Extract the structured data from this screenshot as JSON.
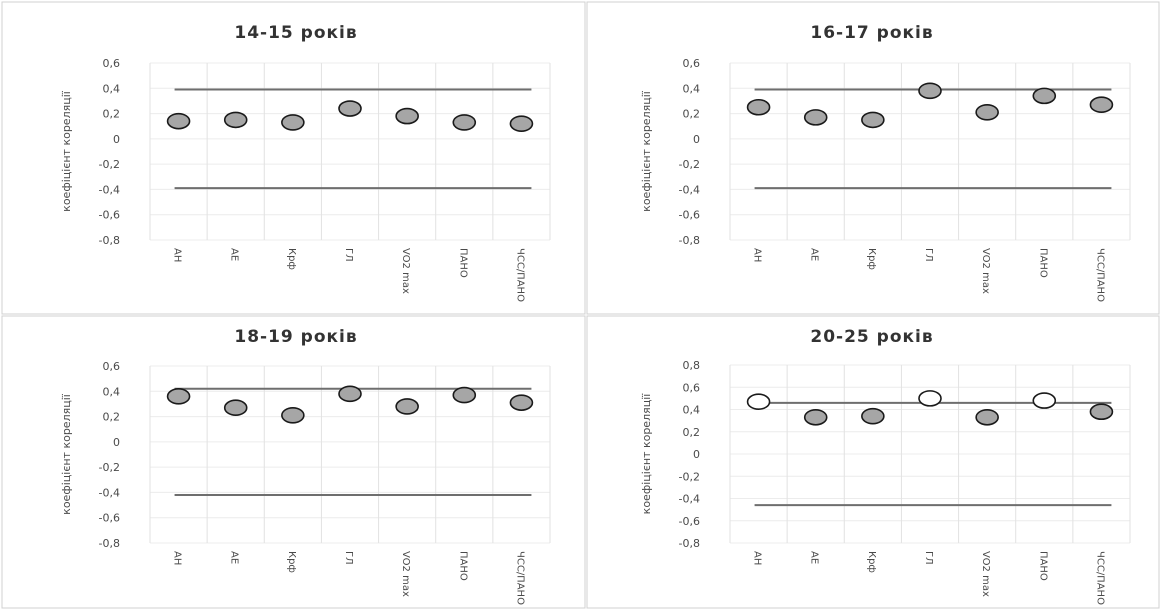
{
  "chart_data": [
    {
      "type": "scatter",
      "title": "14-15 років",
      "ylabel": "коефіцієнт кореляції",
      "categories": [
        "АН",
        "АЕ",
        "Крф",
        "ГЛ",
        "VO2 max",
        "ПАНО",
        "ЧСС/ПАНО"
      ],
      "values": [
        0.14,
        0.15,
        0.13,
        0.24,
        0.18,
        0.13,
        0.12
      ],
      "significant": [
        false,
        false,
        false,
        false,
        false,
        false,
        false
      ],
      "threshold": 0.39,
      "ylim": [
        -0.8,
        0.6
      ],
      "yticks": [
        "0,6",
        "0,4",
        "0,2",
        "0",
        "-0,2",
        "-0,4",
        "-0,6",
        "-0,8"
      ],
      "grid": true
    },
    {
      "type": "scatter",
      "title": "16-17 років",
      "ylabel": "коефіцієнт кореляції",
      "categories": [
        "АН",
        "АЕ",
        "Крф",
        "ГЛ",
        "VO2 max",
        "ПАНО",
        "ЧСС/ПАНО"
      ],
      "values": [
        0.25,
        0.17,
        0.15,
        0.38,
        0.21,
        0.34,
        0.27
      ],
      "significant": [
        false,
        false,
        false,
        false,
        false,
        false,
        false
      ],
      "threshold": 0.39,
      "ylim": [
        -0.8,
        0.6
      ],
      "yticks": [
        "0,6",
        "0,4",
        "0,2",
        "0",
        "-0,2",
        "-0,4",
        "-0,6",
        "-0,8"
      ],
      "grid": true
    },
    {
      "type": "scatter",
      "title": "18-19 років",
      "ylabel": "коефіцієнт кореляції",
      "categories": [
        "АН",
        "АЕ",
        "Крф",
        "ГЛ",
        "VO2 max",
        "ПАНО",
        "ЧСС/ПАНО"
      ],
      "values": [
        0.36,
        0.27,
        0.21,
        0.38,
        0.28,
        0.37,
        0.31
      ],
      "significant": [
        false,
        false,
        false,
        false,
        false,
        false,
        false
      ],
      "threshold": 0.42,
      "ylim": [
        -0.8,
        0.6
      ],
      "yticks": [
        "0,6",
        "0,4",
        "0,2",
        "0",
        "-0,2",
        "-0,4",
        "-0,6",
        "-0,8"
      ],
      "grid": true
    },
    {
      "type": "scatter",
      "title": "20-25 років",
      "ylabel": "коефіцієнт кореляції",
      "categories": [
        "АН",
        "АЕ",
        "Крф",
        "ГЛ",
        "VO2 max",
        "ПАНО",
        "ЧСС/ПАНО"
      ],
      "values": [
        0.47,
        0.33,
        0.34,
        0.5,
        0.33,
        0.48,
        0.38
      ],
      "significant": [
        true,
        false,
        false,
        true,
        false,
        true,
        false
      ],
      "threshold": 0.46,
      "ylim": [
        -0.8,
        0.8
      ],
      "yticks": [
        "0,8",
        "0,6",
        "0,4",
        "0,2",
        "0",
        "-0,2",
        "-0,4",
        "-0,6",
        "-0,8"
      ],
      "grid": true
    }
  ],
  "colors": {
    "point_fill": "#a6a6a6",
    "point_significant_fill": "#ffffff",
    "threshold_line": "#6e6e6e",
    "gridline": "#e2e2e2",
    "panel_border": "#d0d0d0"
  }
}
